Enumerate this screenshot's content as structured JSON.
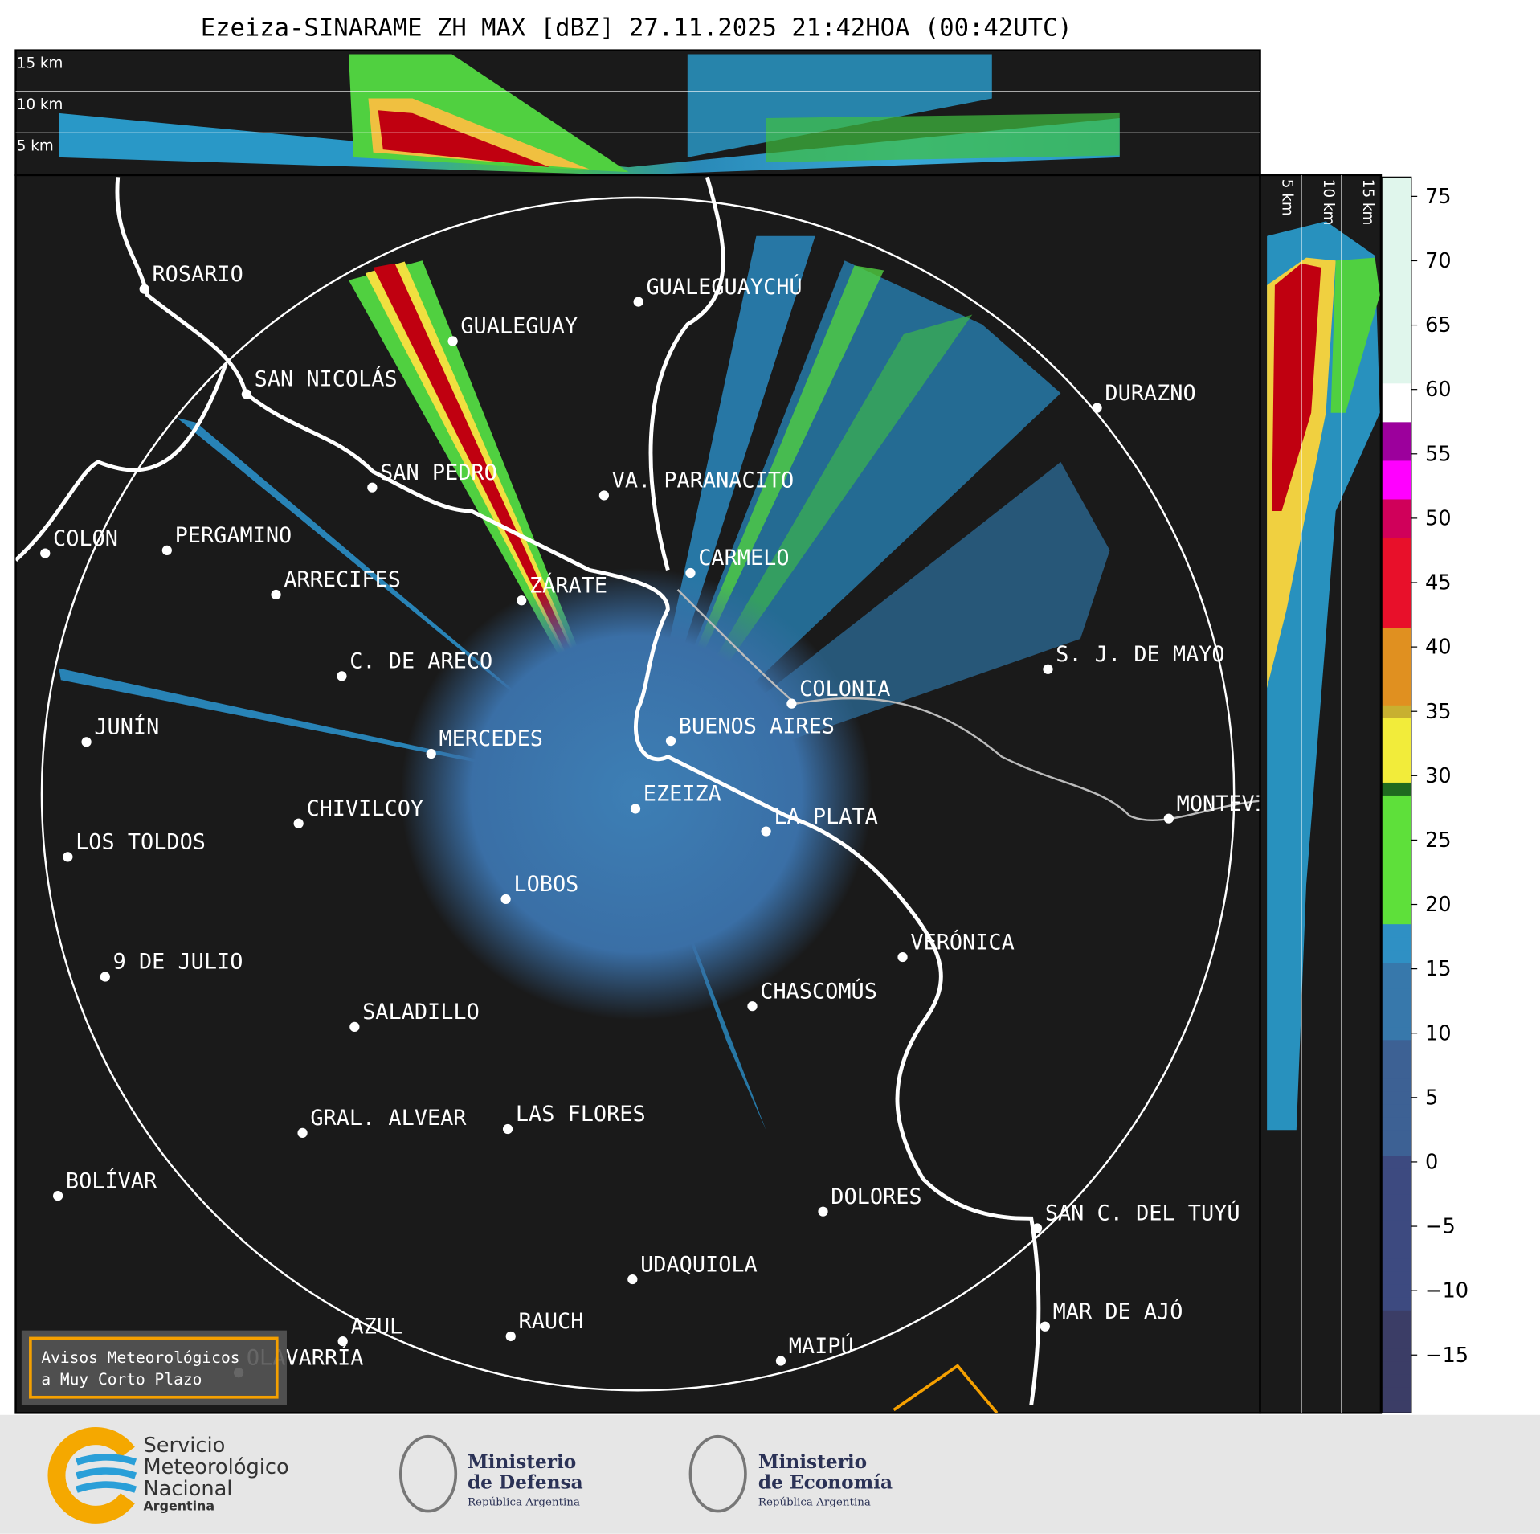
{
  "header": {
    "title": "Ezeiza-SINARAME ZH MAX [dBZ] 27.11.2025 21:42HOA (00:42UTC)"
  },
  "top_panel": {
    "height_labels": [
      "15 km",
      "10 km",
      "5 km"
    ]
  },
  "side_panel": {
    "height_labels": [
      "5 km",
      "10 km",
      "15 km"
    ]
  },
  "map": {
    "cities": [
      "ROSARIO",
      "GUALEGUAYCHÚ",
      "GUALEGUAY",
      "SAN NICOLÁS",
      "DURAZNO",
      "SAN PEDRO",
      "VA. PARANACITO",
      "COLON",
      "PERGAMINO",
      "CARMELO",
      "ARRECIFES",
      "ZÁRATE",
      "S. J. DE MAYO",
      "C. DE ARECO",
      "COLONIA",
      "BUENOS AIRES",
      "JUNÍN",
      "MERCEDES",
      "EZEIZA",
      "MONTEVIDEO",
      "LA PLATA",
      "CHIVILCOY",
      "LOS TOLDOS",
      "LOBOS",
      "VERÓNICA",
      "9 DE JULIO",
      "CHASCOMÚS",
      "SALADILLO",
      "GRAL. ALVEAR",
      "LAS FLORES",
      "BOLÍVAR",
      "DOLORES",
      "SAN C. DEL TUYÚ",
      "UDAQUIOLA",
      "MAR DE AJÓ",
      "AZUL",
      "RAUCH",
      "MAIPÚ",
      "OLAVARRÍA"
    ],
    "warning_box": [
      "Avisos Meteorológicos",
      "a Muy Corto Plazo"
    ]
  },
  "colorbar": {
    "lim": [
      -19.5,
      76.5
    ],
    "ticks": [
      {
        "value": -15,
        "label": "−15"
      },
      {
        "value": -10,
        "label": "−10"
      },
      {
        "value": -5,
        "label": "−5"
      },
      0,
      5,
      10,
      15,
      20,
      25,
      30,
      35,
      40,
      45,
      50,
      55,
      60,
      65,
      70,
      75
    ]
  },
  "footer": {
    "smn": [
      "Servicio",
      "Meteorológico",
      "Nacional",
      "Argentina"
    ],
    "defensa": [
      "Ministerio",
      "de Defensa",
      "República Argentina"
    ],
    "economia": [
      "Ministerio",
      "de Economía",
      "República Argentina"
    ]
  }
}
